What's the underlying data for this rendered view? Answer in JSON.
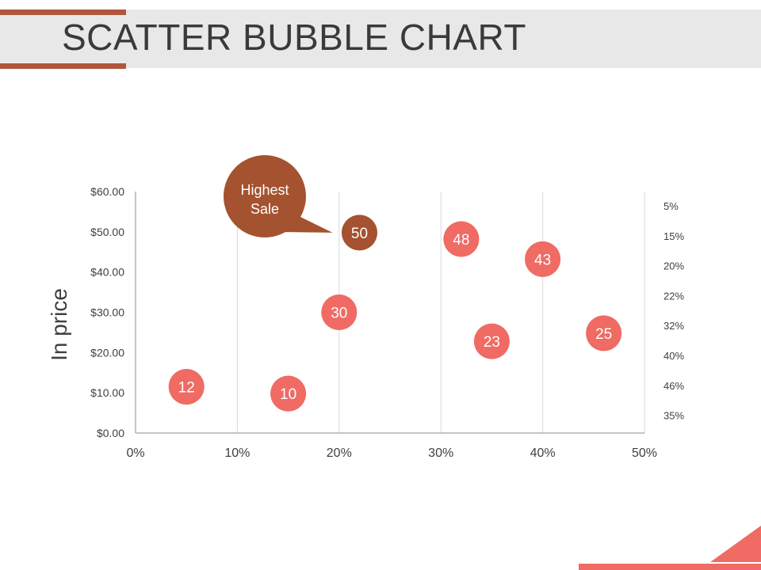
{
  "title": "SCATTER BUBBLE CHART",
  "colors": {
    "accent": "#b0573b",
    "bubble": "#ef6b63",
    "bubble_highlight": "#a4522f",
    "title_bar": "#e8e8e8",
    "text": "#3a3a3a",
    "axis_text": "#404040",
    "grid": "#d9d9d9"
  },
  "chart_data": {
    "type": "scatter",
    "ylabel": "In price",
    "x_tick_labels": [
      "0%",
      "10%",
      "20%",
      "30%",
      "40%",
      "50%"
    ],
    "y_tick_labels": [
      "$0.00",
      "$10.00",
      "$20.00",
      "$30.00",
      "$40.00",
      "$50.00",
      "$60.00"
    ],
    "xlim": [
      0,
      50
    ],
    "ylim": [
      0,
      60
    ],
    "grid": "vertical",
    "right_labels": [
      "5%",
      "15%",
      "20%",
      "22%",
      "32%",
      "40%",
      "46%",
      "35%"
    ],
    "points": [
      {
        "x": 5,
        "y": 11.5,
        "label": "12"
      },
      {
        "x": 15,
        "y": 9.8,
        "label": "10"
      },
      {
        "x": 20,
        "y": 30,
        "label": "30"
      },
      {
        "x": 22,
        "y": 49.8,
        "label": "50",
        "highlight": true
      },
      {
        "x": 32,
        "y": 48.2,
        "label": "48"
      },
      {
        "x": 35,
        "y": 22.8,
        "label": "23"
      },
      {
        "x": 40,
        "y": 43.2,
        "label": "43"
      },
      {
        "x": 46,
        "y": 24.8,
        "label": "25"
      }
    ],
    "callout": {
      "text_lines": [
        "Highest",
        "Sale"
      ],
      "target_label": "50"
    }
  }
}
